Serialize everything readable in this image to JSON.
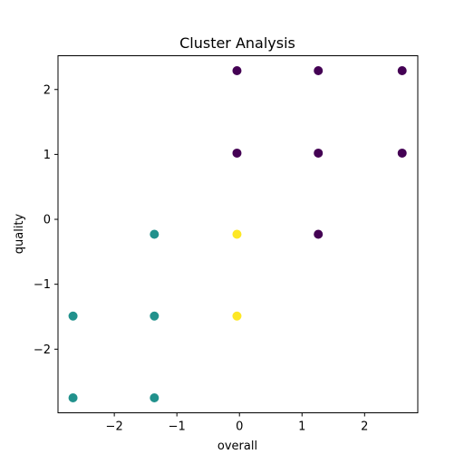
{
  "chart_data": {
    "type": "scatter",
    "title": "Cluster Analysis",
    "xlabel": "overall",
    "ylabel": "quality",
    "xlim": [
      -2.9,
      2.85
    ],
    "ylim": [
      -2.98,
      2.52
    ],
    "xticks": [
      {
        "value": -2,
        "label": "−2"
      },
      {
        "value": -1,
        "label": "−1"
      },
      {
        "value": 0,
        "label": "0"
      },
      {
        "value": 1,
        "label": "1"
      },
      {
        "value": 2,
        "label": "2"
      }
    ],
    "yticks": [
      {
        "value": -2,
        "label": "−2"
      },
      {
        "value": -1,
        "label": "−1"
      },
      {
        "value": 0,
        "label": "0"
      },
      {
        "value": 1,
        "label": "1"
      },
      {
        "value": 2,
        "label": "2"
      }
    ],
    "grid": false,
    "legend": "none",
    "colors": {
      "cluster_0": "#440154",
      "cluster_1": "#21918c",
      "cluster_2": "#fde725"
    },
    "series": [
      {
        "color_key": "cluster_0",
        "points": [
          {
            "x": -0.04,
            "y": 2.29
          },
          {
            "x": 1.26,
            "y": 2.29
          },
          {
            "x": 2.6,
            "y": 2.29
          },
          {
            "x": -0.04,
            "y": 1.02
          },
          {
            "x": 1.26,
            "y": 1.02
          },
          {
            "x": 2.6,
            "y": 1.02
          },
          {
            "x": 1.26,
            "y": -0.23
          }
        ]
      },
      {
        "color_key": "cluster_1",
        "points": [
          {
            "x": -1.36,
            "y": -0.23
          },
          {
            "x": -2.66,
            "y": -1.49
          },
          {
            "x": -1.36,
            "y": -1.49
          },
          {
            "x": -2.66,
            "y": -2.75
          },
          {
            "x": -1.36,
            "y": -2.75
          }
        ]
      },
      {
        "color_key": "cluster_2",
        "points": [
          {
            "x": -0.04,
            "y": -0.23
          },
          {
            "x": -0.04,
            "y": -1.49
          }
        ]
      }
    ]
  }
}
